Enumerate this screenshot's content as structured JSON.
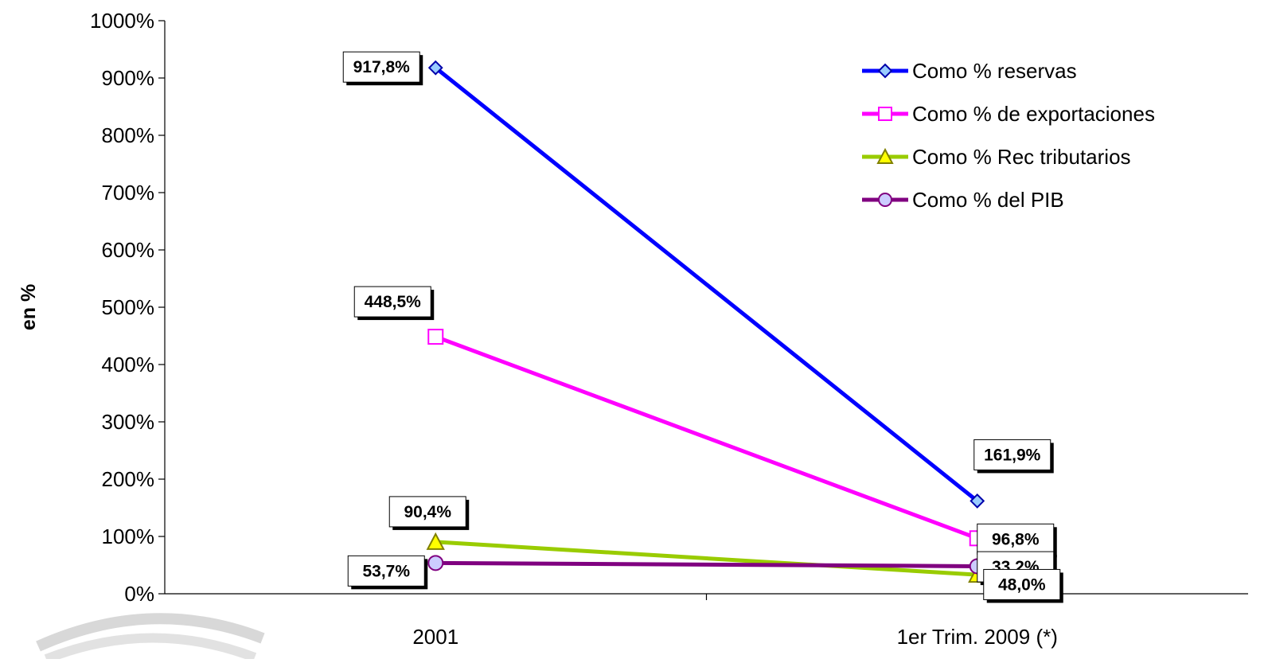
{
  "chart_data": {
    "type": "line",
    "ylabel": "en %",
    "xlabel": "",
    "ylim": [
      0,
      1000
    ],
    "y_ticks": [
      "0%",
      "100%",
      "200%",
      "300%",
      "400%",
      "500%",
      "600%",
      "700%",
      "800%",
      "900%",
      "1000%"
    ],
    "categories": [
      "2001",
      "1er Trim. 2009 (*)"
    ],
    "legend_position": "top-right",
    "grid": false,
    "series": [
      {
        "name": "Como % reservas",
        "values": [
          917.8,
          161.9
        ],
        "labels": [
          "917,8%",
          "161,9%"
        ],
        "color": "#0000ff",
        "marker": "diamond",
        "marker_fill": "#99ccff"
      },
      {
        "name": "Como % de exportaciones",
        "values": [
          448.5,
          96.8
        ],
        "labels": [
          "448,5%",
          "96,8%"
        ],
        "color": "#ff00ff",
        "marker": "square",
        "marker_fill": "#ffffff"
      },
      {
        "name": "Como % Rec tributarios",
        "values": [
          90.4,
          33.2
        ],
        "labels": [
          "90,4%",
          "33,2%"
        ],
        "color": "#99cc00",
        "marker": "triangle",
        "marker_fill": "#ffff00"
      },
      {
        "name": "Como % del PIB",
        "values": [
          53.7,
          48.0
        ],
        "labels": [
          "53,7%",
          "48,0%"
        ],
        "color": "#800080",
        "marker": "circle",
        "marker_fill": "#ccccff"
      }
    ]
  }
}
